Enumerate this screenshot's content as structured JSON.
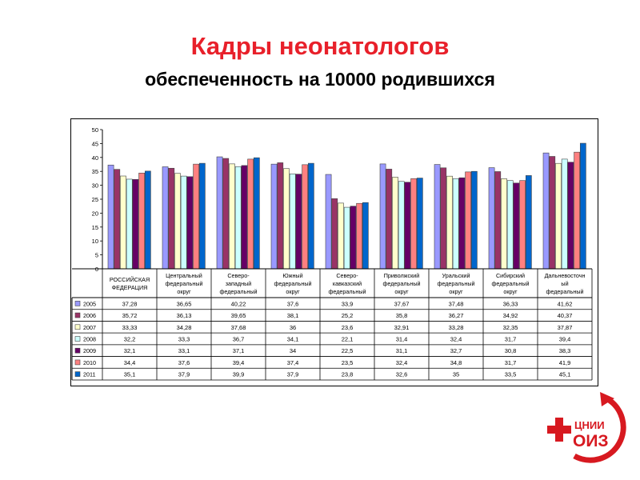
{
  "slide": {
    "title": "Кадры неонатологов",
    "subtitle": "обеспеченность на 10000 родившихся"
  },
  "logo": {
    "text_top": "ЦНИИ",
    "text_bottom": "ОИЗ"
  },
  "colors": {
    "series": [
      "#9999ff",
      "#993366",
      "#ffffcc",
      "#ccffff",
      "#660066",
      "#ff8080",
      "#0066cc"
    ],
    "title": "#e8202a",
    "logo": "#d71920"
  },
  "chart_data": {
    "type": "bar",
    "title": "",
    "xlabel": "",
    "ylabel": "",
    "ylim": [
      0,
      50
    ],
    "yticks": [
      0,
      5,
      10,
      15,
      20,
      25,
      30,
      35,
      40,
      45,
      50
    ],
    "grid": false,
    "legend": "table-left",
    "categories": [
      [
        "РОССИЙСКАЯ",
        "ФЕДЕРАЦИЯ"
      ],
      [
        "Центральный",
        "федеральный",
        "округ"
      ],
      [
        "Северо-",
        "западный",
        "федеральный"
      ],
      [
        "Южный",
        "федеральный",
        "округ"
      ],
      [
        "Северо-",
        "кавказский",
        "федеральный"
      ],
      [
        "Приволжский",
        "федеральный",
        "округ"
      ],
      [
        "Уральский",
        "федеральный",
        "округ"
      ],
      [
        "Сибирский",
        "федеральный",
        "округ"
      ],
      [
        "Дальневосточн",
        "ый",
        "федеральный"
      ]
    ],
    "series": [
      {
        "name": "2005",
        "values": [
          37.28,
          36.65,
          40.22,
          37.6,
          33.9,
          37.67,
          37.48,
          36.33,
          41.62
        ],
        "labels": [
          "37,28",
          "36,65",
          "40,22",
          "37,6",
          "33,9",
          "37,67",
          "37,48",
          "36,33",
          "41,62"
        ]
      },
      {
        "name": "2006",
        "values": [
          35.72,
          36.13,
          39.65,
          38.1,
          25.2,
          35.8,
          36.27,
          34.92,
          40.37
        ],
        "labels": [
          "35,72",
          "36,13",
          "39,65",
          "38,1",
          "25,2",
          "35,8",
          "36,27",
          "34,92",
          "40,37"
        ]
      },
      {
        "name": "2007",
        "values": [
          33.33,
          34.28,
          37.68,
          36,
          23.6,
          32.91,
          33.28,
          32.35,
          37.87
        ],
        "labels": [
          "33,33",
          "34,28",
          "37,68",
          "36",
          "23,6",
          "32,91",
          "33,28",
          "32,35",
          "37,87"
        ]
      },
      {
        "name": "2008",
        "values": [
          32.2,
          33.3,
          36.7,
          34.1,
          22.1,
          31.4,
          32.4,
          31.7,
          39.4
        ],
        "labels": [
          "32,2",
          "33,3",
          "36,7",
          "34,1",
          "22,1",
          "31,4",
          "32,4",
          "31,7",
          "39,4"
        ]
      },
      {
        "name": "2009",
        "values": [
          32.1,
          33.1,
          37.1,
          34,
          22.5,
          31.1,
          32.7,
          30.8,
          38.3
        ],
        "labels": [
          "32,1",
          "33,1",
          "37,1",
          "34",
          "22,5",
          "31,1",
          "32,7",
          "30,8",
          "38,3"
        ]
      },
      {
        "name": "2010",
        "values": [
          34.4,
          37.6,
          39.4,
          37.4,
          23.5,
          32.4,
          34.8,
          31.7,
          41.9
        ],
        "labels": [
          "34,4",
          "37,6",
          "39,4",
          "37,4",
          "23,5",
          "32,4",
          "34,8",
          "31,7",
          "41,9"
        ]
      },
      {
        "name": "2011",
        "values": [
          35.1,
          37.9,
          39.9,
          37.9,
          23.8,
          32.6,
          35,
          33.5,
          45.1
        ],
        "labels": [
          "35,1",
          "37,9",
          "39,9",
          "37,9",
          "23,8",
          "32,6",
          "35",
          "33,5",
          "45,1"
        ]
      }
    ]
  }
}
